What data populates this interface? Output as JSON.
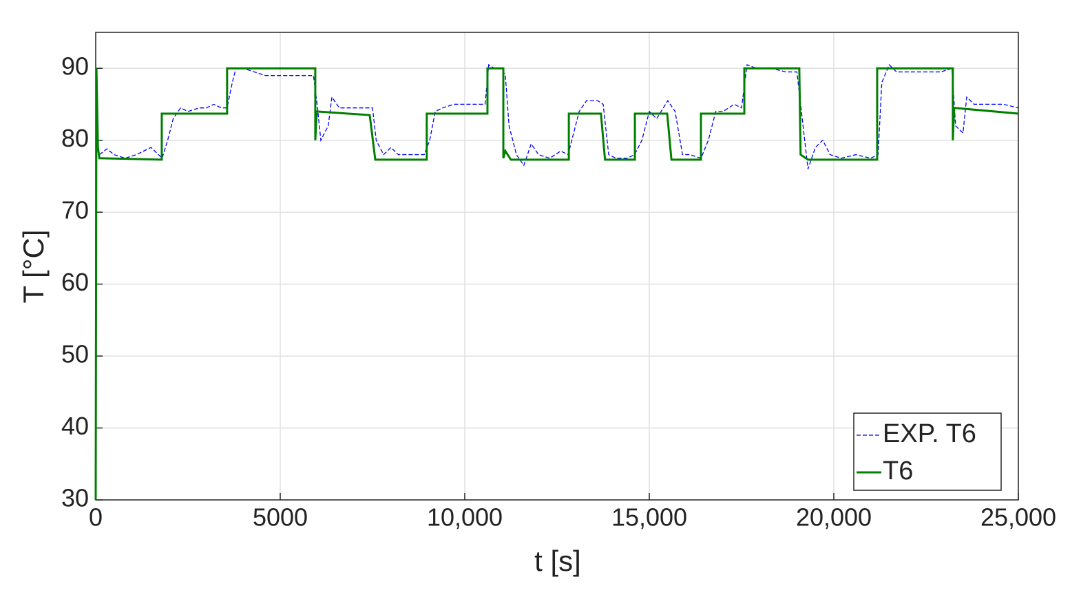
{
  "chart_data": {
    "type": "line",
    "xlabel": "t [s]",
    "ylabel": "T [°C]",
    "xlim": [
      0,
      25000
    ],
    "ylim": [
      30,
      95
    ],
    "xticks": [
      0,
      5000,
      {
        "value": 10000,
        "label": "10,000"
      },
      {
        "value": 15000,
        "label": "15,000"
      },
      {
        "value": 20000,
        "label": "20,000"
      },
      {
        "value": 25000,
        "label": "25,000"
      }
    ],
    "yticks": [
      30,
      40,
      50,
      60,
      70,
      80,
      90
    ],
    "grid": true,
    "legend": "lower right",
    "series": [
      {
        "name": "EXP. T6",
        "color": "#0000ff",
        "dash": true,
        "x": [
          100,
          300,
          500,
          800,
          1100,
          1300,
          1500,
          1700,
          1800,
          1950,
          2100,
          2300,
          2500,
          2800,
          3000,
          3200,
          3400,
          3560,
          3700,
          3800,
          4000,
          4300,
          4600,
          5000,
          5300,
          5600,
          5900,
          6000,
          6100,
          6300,
          6400,
          6600,
          6800,
          7000,
          7300,
          7500,
          7600,
          7800,
          8000,
          8200,
          8500,
          8900,
          9050,
          9200,
          9400,
          9700,
          10000,
          10300,
          10550,
          10650,
          10800,
          11000,
          11100,
          11200,
          11400,
          11600,
          11800,
          12000,
          12300,
          12600,
          12800,
          12900,
          13100,
          13300,
          13600,
          13750,
          13900,
          14100,
          14400,
          14600,
          14800,
          15000,
          15200,
          15500,
          15700,
          15900,
          16100,
          16400,
          16600,
          16800,
          17000,
          17300,
          17500,
          17650,
          17900,
          18300,
          18700,
          19000,
          19100,
          19300,
          19500,
          19700,
          19900,
          20200,
          20600,
          21000,
          21200,
          21300,
          21500,
          21700,
          22000,
          22500,
          22900,
          23200,
          23300,
          23500,
          23600,
          23800,
          24200,
          24600,
          25000
        ],
        "values": [
          78,
          78.8,
          78,
          77.5,
          78,
          78.5,
          79,
          78,
          77.5,
          80,
          83,
          84.5,
          84,
          84.5,
          84.5,
          85,
          84.5,
          84.5,
          88,
          90,
          90,
          89.5,
          89,
          89,
          89,
          89,
          89,
          85,
          80,
          82,
          86,
          84.5,
          84.5,
          84.5,
          84.5,
          84.5,
          80,
          78,
          79,
          78,
          78,
          78,
          80,
          84,
          84.5,
          85,
          85,
          85,
          85,
          90.5,
          90,
          90,
          89,
          82,
          78,
          76.5,
          79.5,
          78,
          77.5,
          78.5,
          78,
          80,
          84,
          85.5,
          85.5,
          85,
          78,
          77.5,
          77.5,
          78,
          80,
          84,
          83,
          85.5,
          84,
          78,
          78,
          77.5,
          80,
          84,
          84,
          85,
          84.5,
          90.5,
          90,
          90,
          89.5,
          89.5,
          85,
          76,
          79,
          80,
          78,
          77.5,
          78,
          77.5,
          78,
          88,
          90.5,
          89.5,
          89.5,
          89.5,
          89.5,
          90,
          82,
          81,
          86,
          85,
          85,
          85,
          84.5
        ]
      },
      {
        "name": "T6",
        "color": "#007f00",
        "dash": false,
        "x": [
          0,
          20,
          60,
          100,
          1790,
          1790,
          3560,
          3560,
          5950,
          5950,
          5990,
          7425,
          7575,
          8970,
          8970,
          10615,
          10615,
          11045,
          11045,
          11100,
          11250,
          12820,
          12820,
          13690,
          13800,
          14610,
          14610,
          15485,
          15600,
          16400,
          16400,
          17575,
          17575,
          19065,
          19100,
          19300,
          21175,
          21175,
          23225,
          23225,
          23260,
          25000
        ],
        "values": [
          30,
          90,
          79,
          77.5,
          77.3,
          83.7,
          83.7,
          90,
          90,
          80,
          84,
          83.5,
          77.3,
          77.3,
          83.7,
          83.7,
          90,
          90,
          77.5,
          78.5,
          77.3,
          77.3,
          83.7,
          83.7,
          77.3,
          77.3,
          83.7,
          83.7,
          77.3,
          77.3,
          83.7,
          83.7,
          90,
          90,
          78,
          77.3,
          77.3,
          90,
          90,
          80,
          84.5,
          83.7
        ]
      }
    ]
  }
}
